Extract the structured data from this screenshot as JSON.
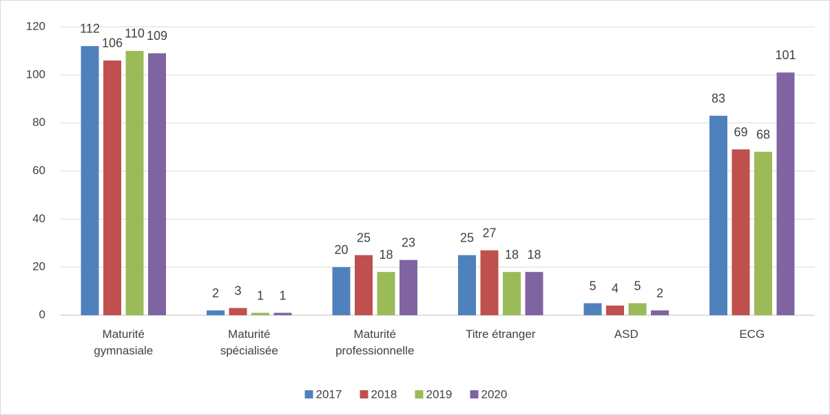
{
  "chart_data": {
    "type": "bar",
    "categories": [
      "Maturité\ngymnasiale",
      "Maturité\nspécialisée",
      "Maturité\nprofessionnelle",
      "Titre étranger",
      "ASD",
      "ECG"
    ],
    "series": [
      {
        "name": "2017",
        "color": "#4f81bd",
        "values": [
          112,
          2,
          20,
          25,
          5,
          83
        ]
      },
      {
        "name": "2018",
        "color": "#c0504d",
        "values": [
          106,
          3,
          25,
          27,
          4,
          69
        ]
      },
      {
        "name": "2019",
        "color": "#9bbb59",
        "values": [
          110,
          1,
          18,
          18,
          5,
          68
        ]
      },
      {
        "name": "2020",
        "color": "#8064a2",
        "values": [
          109,
          1,
          23,
          18,
          2,
          101
        ]
      }
    ],
    "ylim": [
      0,
      120
    ],
    "yticks": [
      0,
      20,
      40,
      60,
      80,
      100,
      120
    ],
    "grid": true,
    "legend": "bottom"
  }
}
